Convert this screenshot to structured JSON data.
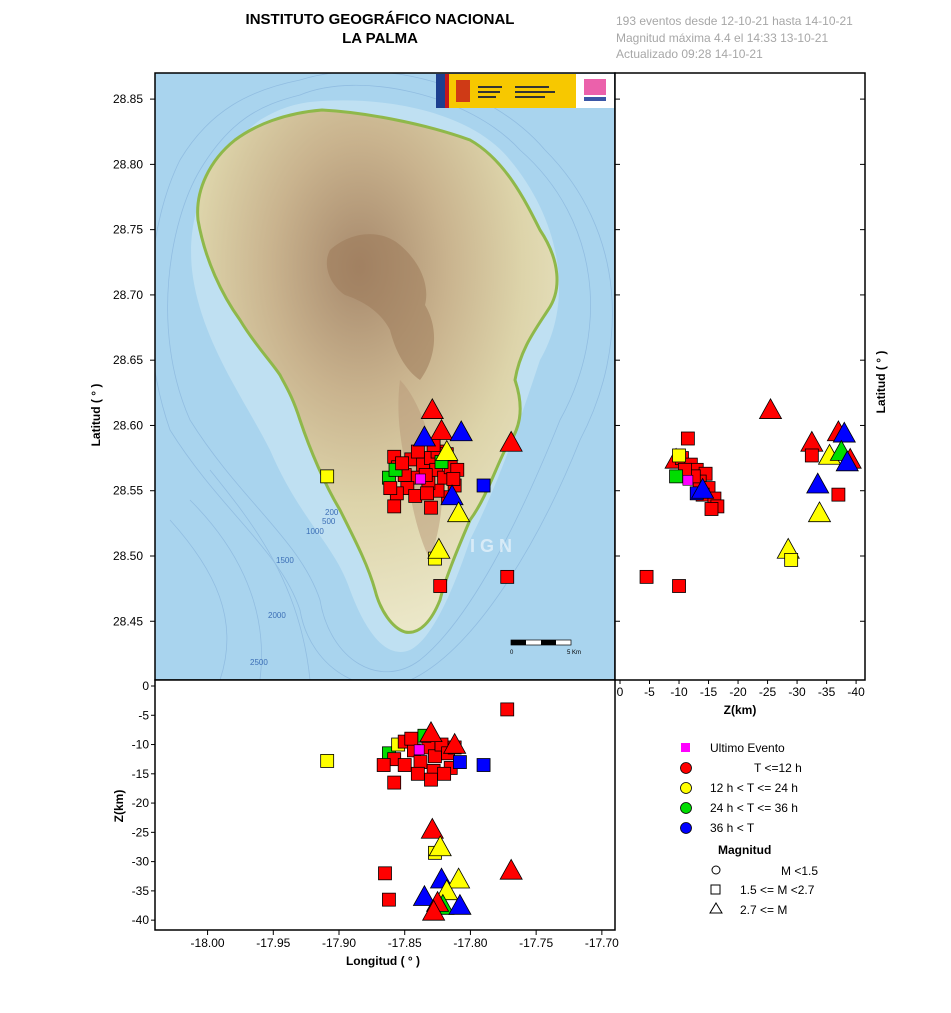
{
  "header": {
    "title_line1": "INSTITUTO GEOGRÁFICO NACIONAL",
    "title_line2": "LA PALMA",
    "info_line1": "193 eventos desde 12-10-21 hasta 14-10-21",
    "info_line2": "Magnitud máxima 4.4 el 14:33 13-10-21",
    "info_line3": "Actualizado   09:28  14-10-21"
  },
  "map": {
    "watermark": "IGN",
    "scale_labels": [
      "0",
      "5 Km"
    ],
    "bathymetry_labels": [
      "200",
      "500",
      "1000",
      "1500",
      "2000",
      "2500"
    ],
    "colors": {
      "sea": "#a9d4ee",
      "land_low": "#e9e4c2",
      "land_high": "#b58c66",
      "coast": "#8fb84a"
    }
  },
  "legend": {
    "items": [
      {
        "label": "Ultimo Evento",
        "color": "#ff00ff"
      },
      {
        "label": "T <=12 h",
        "color": "#ff0000"
      },
      {
        "label": "12 h  < T <= 24 h",
        "color": "#ffff00"
      },
      {
        "label": "24 h  < T <= 36 h",
        "color": "#00dd00"
      },
      {
        "label": "36 h <  T",
        "color": "#0000ff"
      }
    ],
    "magnitude_title": "Magnitud",
    "magnitude_items": [
      {
        "label": "M <1.5",
        "shape": "circle"
      },
      {
        "label": "1.5 <= M <2.7",
        "shape": "square"
      },
      {
        "label": "2.7 <= M",
        "shape": "triangle"
      }
    ]
  },
  "chart_data": [
    {
      "type": "scatter",
      "panel": "map-epicenters",
      "xlabel": "",
      "ylabel": "Latitud ( ° )",
      "ylim": [
        28.405,
        28.87
      ],
      "yticks": [
        "28.45",
        "28.50",
        "28.55",
        "28.60",
        "28.65",
        "28.70",
        "28.75",
        "28.80",
        "28.85"
      ],
      "xlim": [
        -18.04,
        -17.69
      ],
      "points": [
        {
          "x": -17.858,
          "y": 28.576,
          "c": "red",
          "s": "square"
        },
        {
          "x": -17.855,
          "y": 28.568,
          "c": "red",
          "s": "square"
        },
        {
          "x": -17.85,
          "y": 28.562,
          "c": "red",
          "s": "square"
        },
        {
          "x": -17.862,
          "y": 28.56,
          "c": "green",
          "s": "square"
        },
        {
          "x": -17.857,
          "y": 28.566,
          "c": "green",
          "s": "square"
        },
        {
          "x": -17.845,
          "y": 28.574,
          "c": "red",
          "s": "square"
        },
        {
          "x": -17.84,
          "y": 28.58,
          "c": "red",
          "s": "square"
        },
        {
          "x": -17.836,
          "y": 28.57,
          "c": "red",
          "s": "square"
        },
        {
          "x": -17.83,
          "y": 28.575,
          "c": "red",
          "s": "square"
        },
        {
          "x": -17.826,
          "y": 28.566,
          "c": "red",
          "s": "square"
        },
        {
          "x": -17.82,
          "y": 28.56,
          "c": "red",
          "s": "square"
        },
        {
          "x": -17.815,
          "y": 28.568,
          "c": "red",
          "s": "square"
        },
        {
          "x": -17.81,
          "y": 28.566,
          "c": "red",
          "s": "square"
        },
        {
          "x": -17.812,
          "y": 28.554,
          "c": "red",
          "s": "square"
        },
        {
          "x": -17.817,
          "y": 28.545,
          "c": "red",
          "s": "square"
        },
        {
          "x": -17.825,
          "y": 28.55,
          "c": "red",
          "s": "square"
        },
        {
          "x": -17.832,
          "y": 28.556,
          "c": "red",
          "s": "square"
        },
        {
          "x": -17.84,
          "y": 28.56,
          "c": "red",
          "s": "square"
        },
        {
          "x": -17.848,
          "y": 28.552,
          "c": "red",
          "s": "square"
        },
        {
          "x": -17.856,
          "y": 28.548,
          "c": "red",
          "s": "square"
        },
        {
          "x": -17.861,
          "y": 28.552,
          "c": "red",
          "s": "square"
        },
        {
          "x": -17.858,
          "y": 28.538,
          "c": "red",
          "s": "square"
        },
        {
          "x": -17.842,
          "y": 28.546,
          "c": "red",
          "s": "square"
        },
        {
          "x": -17.83,
          "y": 28.537,
          "c": "red",
          "s": "square"
        },
        {
          "x": -17.825,
          "y": 28.58,
          "c": "red",
          "s": "square"
        },
        {
          "x": -17.818,
          "y": 28.578,
          "c": "red",
          "s": "square"
        },
        {
          "x": -17.813,
          "y": 28.559,
          "c": "red",
          "s": "square"
        },
        {
          "x": -17.828,
          "y": 28.585,
          "c": "red",
          "s": "square"
        },
        {
          "x": -17.834,
          "y": 28.562,
          "c": "red",
          "s": "square"
        },
        {
          "x": -17.852,
          "y": 28.571,
          "c": "red",
          "s": "square"
        },
        {
          "x": -17.822,
          "y": 28.572,
          "c": "green",
          "s": "square"
        },
        {
          "x": -17.833,
          "y": 28.548,
          "c": "red",
          "s": "square"
        },
        {
          "x": -17.909,
          "y": 28.561,
          "c": "yellow",
          "s": "square"
        },
        {
          "x": -17.79,
          "y": 28.554,
          "c": "blue",
          "s": "square"
        },
        {
          "x": -17.827,
          "y": 28.498,
          "c": "yellow",
          "s": "square"
        },
        {
          "x": -17.823,
          "y": 28.477,
          "c": "red",
          "s": "square"
        },
        {
          "x": -17.772,
          "y": 28.484,
          "c": "red",
          "s": "square"
        },
        {
          "x": -17.829,
          "y": 28.612,
          "c": "red",
          "s": "triangle"
        },
        {
          "x": -17.822,
          "y": 28.596,
          "c": "red",
          "s": "triangle"
        },
        {
          "x": -17.807,
          "y": 28.595,
          "c": "blue",
          "s": "triangle"
        },
        {
          "x": -17.835,
          "y": 28.591,
          "c": "blue",
          "s": "triangle"
        },
        {
          "x": -17.818,
          "y": 28.58,
          "c": "yellow",
          "s": "triangle"
        },
        {
          "x": -17.769,
          "y": 28.587,
          "c": "red",
          "s": "triangle"
        },
        {
          "x": -17.814,
          "y": 28.546,
          "c": "blue",
          "s": "triangle"
        },
        {
          "x": -17.809,
          "y": 28.533,
          "c": "yellow",
          "s": "triangle"
        },
        {
          "x": -17.824,
          "y": 28.505,
          "c": "yellow",
          "s": "triangle"
        },
        {
          "x": -17.838,
          "y": 28.559,
          "c": "magenta",
          "s": "square",
          "last": true
        }
      ]
    },
    {
      "type": "scatter",
      "panel": "depth-vs-latitude",
      "xlabel": "Z(km)",
      "ylabel": "Latitud ( ° )",
      "xlim": [
        0,
        -41
      ],
      "xticks": [
        "0",
        "-5",
        "-10",
        "-15",
        "-20",
        "-25",
        "-30",
        "-35",
        "-40"
      ],
      "ylim": [
        28.405,
        28.87
      ],
      "points": [
        {
          "x": -9.5,
          "y": 28.574,
          "c": "red",
          "s": "triangle"
        },
        {
          "x": -11.5,
          "y": 28.59,
          "c": "red",
          "s": "square"
        },
        {
          "x": -10.5,
          "y": 28.575,
          "c": "red",
          "s": "square"
        },
        {
          "x": -12.0,
          "y": 28.57,
          "c": "red",
          "s": "square"
        },
        {
          "x": -13.0,
          "y": 28.566,
          "c": "red",
          "s": "square"
        },
        {
          "x": -14.5,
          "y": 28.563,
          "c": "red",
          "s": "square"
        },
        {
          "x": -13.5,
          "y": 28.557,
          "c": "red",
          "s": "square"
        },
        {
          "x": -15.0,
          "y": 28.552,
          "c": "red",
          "s": "square"
        },
        {
          "x": -14.0,
          "y": 28.547,
          "c": "red",
          "s": "square"
        },
        {
          "x": -16.0,
          "y": 28.544,
          "c": "red",
          "s": "square"
        },
        {
          "x": -16.5,
          "y": 28.538,
          "c": "red",
          "s": "square"
        },
        {
          "x": -15.5,
          "y": 28.536,
          "c": "red",
          "s": "square"
        },
        {
          "x": -12.5,
          "y": 28.561,
          "c": "red",
          "s": "square"
        },
        {
          "x": -11.0,
          "y": 28.566,
          "c": "red",
          "s": "square"
        },
        {
          "x": -9.5,
          "y": 28.561,
          "c": "green",
          "s": "square"
        },
        {
          "x": -10.0,
          "y": 28.577,
          "c": "yellow",
          "s": "square"
        },
        {
          "x": -13.0,
          "y": 28.548,
          "c": "blue",
          "s": "square"
        },
        {
          "x": -14.0,
          "y": 28.551,
          "c": "blue",
          "s": "triangle"
        },
        {
          "x": -11.5,
          "y": 28.558,
          "c": "magenta",
          "s": "square",
          "last": true
        },
        {
          "x": -25.5,
          "y": 28.612,
          "c": "red",
          "s": "triangle"
        },
        {
          "x": -32.5,
          "y": 28.587,
          "c": "red",
          "s": "triangle"
        },
        {
          "x": -32.5,
          "y": 28.577,
          "c": "red",
          "s": "square"
        },
        {
          "x": -35.5,
          "y": 28.577,
          "c": "yellow",
          "s": "triangle"
        },
        {
          "x": -37.0,
          "y": 28.595,
          "c": "red",
          "s": "triangle"
        },
        {
          "x": -38.0,
          "y": 28.594,
          "c": "blue",
          "s": "triangle"
        },
        {
          "x": -37.5,
          "y": 28.58,
          "c": "green",
          "s": "triangle"
        },
        {
          "x": -39.0,
          "y": 28.574,
          "c": "red",
          "s": "triangle"
        },
        {
          "x": -38.5,
          "y": 28.572,
          "c": "blue",
          "s": "triangle"
        },
        {
          "x": -33.5,
          "y": 28.555,
          "c": "blue",
          "s": "triangle"
        },
        {
          "x": -33.8,
          "y": 28.533,
          "c": "yellow",
          "s": "triangle"
        },
        {
          "x": -37.0,
          "y": 28.547,
          "c": "red",
          "s": "square"
        },
        {
          "x": -28.5,
          "y": 28.505,
          "c": "yellow",
          "s": "triangle"
        },
        {
          "x": -29.0,
          "y": 28.497,
          "c": "yellow",
          "s": "square"
        },
        {
          "x": -4.5,
          "y": 28.484,
          "c": "red",
          "s": "square"
        },
        {
          "x": -10.0,
          "y": 28.477,
          "c": "red",
          "s": "square"
        }
      ]
    },
    {
      "type": "scatter",
      "panel": "longitude-vs-depth",
      "xlabel": "Longitud ( ° )",
      "ylabel": "Z(km)",
      "xlim": [
        -18.04,
        -17.69
      ],
      "xticks": [
        "-18.00",
        "-17.95",
        "-17.90",
        "-17.85",
        "-17.80",
        "-17.75",
        "-17.70"
      ],
      "ylim": [
        0,
        -41
      ],
      "yticks": [
        "0",
        "-5",
        "-10",
        "-15",
        "-20",
        "-25",
        "-30",
        "-35",
        "-40"
      ],
      "points": [
        {
          "x": -17.772,
          "y": -4.0,
          "c": "red",
          "s": "square"
        },
        {
          "x": -17.909,
          "y": -12.8,
          "c": "yellow",
          "s": "square"
        },
        {
          "x": -17.862,
          "y": -11.5,
          "c": "green",
          "s": "square"
        },
        {
          "x": -17.855,
          "y": -10.0,
          "c": "yellow",
          "s": "square"
        },
        {
          "x": -17.85,
          "y": -9.5,
          "c": "red",
          "s": "square"
        },
        {
          "x": -17.858,
          "y": -12.5,
          "c": "red",
          "s": "square"
        },
        {
          "x": -17.85,
          "y": -13.5,
          "c": "red",
          "s": "square"
        },
        {
          "x": -17.843,
          "y": -11.0,
          "c": "red",
          "s": "square"
        },
        {
          "x": -17.838,
          "y": -13.0,
          "c": "red",
          "s": "square"
        },
        {
          "x": -17.832,
          "y": -10.5,
          "c": "red",
          "s": "square"
        },
        {
          "x": -17.827,
          "y": -12.0,
          "c": "red",
          "s": "square"
        },
        {
          "x": -17.822,
          "y": -10.0,
          "c": "red",
          "s": "square"
        },
        {
          "x": -17.817,
          "y": -11.5,
          "c": "red",
          "s": "square"
        },
        {
          "x": -17.812,
          "y": -10.5,
          "c": "red",
          "s": "square"
        },
        {
          "x": -17.815,
          "y": -14.0,
          "c": "red",
          "s": "square"
        },
        {
          "x": -17.828,
          "y": -14.5,
          "c": "red",
          "s": "square"
        },
        {
          "x": -17.84,
          "y": -15.0,
          "c": "red",
          "s": "square"
        },
        {
          "x": -17.858,
          "y": -16.5,
          "c": "red",
          "s": "square"
        },
        {
          "x": -17.83,
          "y": -16.0,
          "c": "red",
          "s": "square"
        },
        {
          "x": -17.82,
          "y": -15.0,
          "c": "red",
          "s": "square"
        },
        {
          "x": -17.845,
          "y": -9.0,
          "c": "red",
          "s": "square"
        },
        {
          "x": -17.835,
          "y": -8.5,
          "c": "green",
          "s": "square"
        },
        {
          "x": -17.866,
          "y": -13.5,
          "c": "red",
          "s": "square"
        },
        {
          "x": -17.79,
          "y": -13.5,
          "c": "blue",
          "s": "square"
        },
        {
          "x": -17.808,
          "y": -13.0,
          "c": "blue",
          "s": "square"
        },
        {
          "x": -17.83,
          "y": -8.0,
          "c": "red",
          "s": "triangle"
        },
        {
          "x": -17.812,
          "y": -10.0,
          "c": "red",
          "s": "triangle"
        },
        {
          "x": -17.839,
          "y": -10.9,
          "c": "magenta",
          "s": "square",
          "last": true
        },
        {
          "x": -17.829,
          "y": -24.5,
          "c": "red",
          "s": "triangle"
        },
        {
          "x": -17.827,
          "y": -28.5,
          "c": "yellow",
          "s": "square"
        },
        {
          "x": -17.823,
          "y": -27.5,
          "c": "yellow",
          "s": "triangle"
        },
        {
          "x": -17.769,
          "y": -31.5,
          "c": "red",
          "s": "triangle"
        },
        {
          "x": -17.865,
          "y": -32.0,
          "c": "red",
          "s": "square"
        },
        {
          "x": -17.862,
          "y": -36.5,
          "c": "red",
          "s": "square"
        },
        {
          "x": -17.822,
          "y": -33.0,
          "c": "blue",
          "s": "triangle"
        },
        {
          "x": -17.809,
          "y": -33.0,
          "c": "yellow",
          "s": "triangle"
        },
        {
          "x": -17.818,
          "y": -35.0,
          "c": "yellow",
          "s": "triangle"
        },
        {
          "x": -17.835,
          "y": -36.0,
          "c": "blue",
          "s": "triangle"
        },
        {
          "x": -17.821,
          "y": -37.5,
          "c": "green",
          "s": "triangle"
        },
        {
          "x": -17.825,
          "y": -37.0,
          "c": "red",
          "s": "triangle"
        },
        {
          "x": -17.808,
          "y": -37.5,
          "c": "blue",
          "s": "triangle"
        },
        {
          "x": -17.828,
          "y": -38.5,
          "c": "red",
          "s": "triangle"
        }
      ]
    }
  ]
}
